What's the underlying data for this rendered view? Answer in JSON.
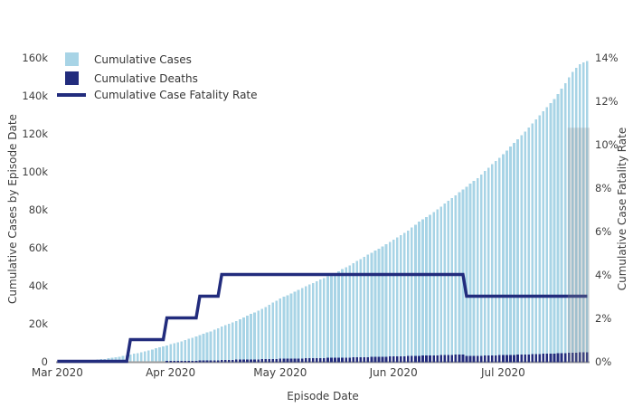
{
  "chart_data": {
    "type": "combo-bar-line",
    "title": "",
    "x_axis": {
      "title": "Episode Date",
      "start_date": "2020-03-01",
      "end_date": "2020-07-24",
      "days": 146,
      "ticks": [
        {
          "label": "Mar 2020",
          "day": 0
        },
        {
          "label": "Apr 2020",
          "day": 31
        },
        {
          "label": "May 2020",
          "day": 61
        },
        {
          "label": "Jun 2020",
          "day": 92
        },
        {
          "label": "Jul 2020",
          "day": 122
        }
      ]
    },
    "left_axis": {
      "title": "Cumulative Cases by Episode Date",
      "min": 0,
      "max": 160000,
      "ticks": [
        {
          "label": "0",
          "value": 0
        },
        {
          "label": "20k",
          "value": 20000
        },
        {
          "label": "40k",
          "value": 40000
        },
        {
          "label": "60k",
          "value": 60000
        },
        {
          "label": "80k",
          "value": 80000
        },
        {
          "label": "100k",
          "value": 100000
        },
        {
          "label": "120k",
          "value": 120000
        },
        {
          "label": "140k",
          "value": 140000
        },
        {
          "label": "160k",
          "value": 160000
        }
      ]
    },
    "right_axis": {
      "title": "Cumulative Case Fatality Rate",
      "min": 0,
      "max": 14,
      "ticks": [
        {
          "label": "0%",
          "value": 0
        },
        {
          "label": "2%",
          "value": 2
        },
        {
          "label": "4%",
          "value": 4
        },
        {
          "label": "6%",
          "value": 6
        },
        {
          "label": "8%",
          "value": 8
        },
        {
          "label": "10%",
          "value": 10
        },
        {
          "label": "12%",
          "value": 12
        },
        {
          "label": "14%",
          "value": 14
        }
      ]
    },
    "legend": [
      {
        "label": "Cumulative Cases",
        "type": "bar",
        "color": "#a8d4e6"
      },
      {
        "label": "Cumulative Deaths",
        "type": "bar",
        "color": "#222c7d"
      },
      {
        "label": "Cumulative Case Fatality Rate",
        "type": "line",
        "color": "#222c7d"
      }
    ],
    "series": {
      "cases": {
        "name": "Cumulative Cases",
        "axis": "left",
        "color": "#a8d4e6",
        "anchors_day_value": [
          [
            0,
            30
          ],
          [
            3,
            90
          ],
          [
            6,
            300
          ],
          [
            10,
            700
          ],
          [
            13,
            1300
          ],
          [
            16,
            2100
          ],
          [
            20,
            3500
          ],
          [
            23,
            4800
          ],
          [
            27,
            6800
          ],
          [
            31,
            9000
          ],
          [
            35,
            11100
          ],
          [
            38,
            13200
          ],
          [
            42,
            15800
          ],
          [
            45,
            18300
          ],
          [
            49,
            21300
          ],
          [
            52,
            24000
          ],
          [
            56,
            27600
          ],
          [
            61,
            33000
          ],
          [
            64,
            35800
          ],
          [
            68,
            39500
          ],
          [
            72,
            43000
          ],
          [
            76,
            46500
          ],
          [
            80,
            50500
          ],
          [
            84,
            55000
          ],
          [
            88,
            59300
          ],
          [
            92,
            64000
          ],
          [
            96,
            68800
          ],
          [
            99,
            73500
          ],
          [
            103,
            78500
          ],
          [
            107,
            84500
          ],
          [
            111,
            90500
          ],
          [
            115,
            96500
          ],
          [
            118,
            102000
          ],
          [
            122,
            109000
          ],
          [
            125,
            115000
          ],
          [
            129,
            123000
          ],
          [
            132,
            129500
          ],
          [
            136,
            138000
          ],
          [
            139,
            146500
          ],
          [
            141,
            152500
          ],
          [
            143,
            156500
          ],
          [
            145,
            158200
          ]
        ]
      },
      "deaths": {
        "name": "Cumulative Deaths",
        "axis": "left",
        "color": "#222c7d",
        "derived": "cases * cfr",
        "approx_anchors_day_value": [
          [
            20,
            35
          ],
          [
            31,
            180
          ],
          [
            45,
            730
          ],
          [
            61,
            1320
          ],
          [
            92,
            2560
          ],
          [
            112,
            2900
          ],
          [
            122,
            3270
          ],
          [
            145,
            4750
          ]
        ]
      },
      "cfr": {
        "name": "Cumulative Case Fatality Rate",
        "axis": "right",
        "unit": "%",
        "color": "#222c7d",
        "steps": [
          {
            "from_day": 0,
            "to_day": 20,
            "pct": 0
          },
          {
            "from_day": 20,
            "to_day": 30,
            "pct": 1
          },
          {
            "from_day": 30,
            "to_day": 39,
            "pct": 2
          },
          {
            "from_day": 39,
            "to_day": 45,
            "pct": 3
          },
          {
            "from_day": 45,
            "to_day": 112,
            "pct": 4
          },
          {
            "from_day": 112,
            "to_day": 146,
            "pct": 3
          }
        ]
      }
    },
    "highlight_region": {
      "from_day": 140,
      "to_day": 146,
      "top_value": 123000,
      "color": "rgba(140,140,140,0.27)"
    },
    "grid": "off",
    "legend_position": "top-left-inside",
    "colors": {
      "cases_bar": "#a8d4e6",
      "deaths_bar": "#222c7d",
      "cfr_line": "#222c7d",
      "axis_line": "#9b9b9b",
      "text": "#3e3e3e",
      "background": "#ffffff"
    }
  }
}
